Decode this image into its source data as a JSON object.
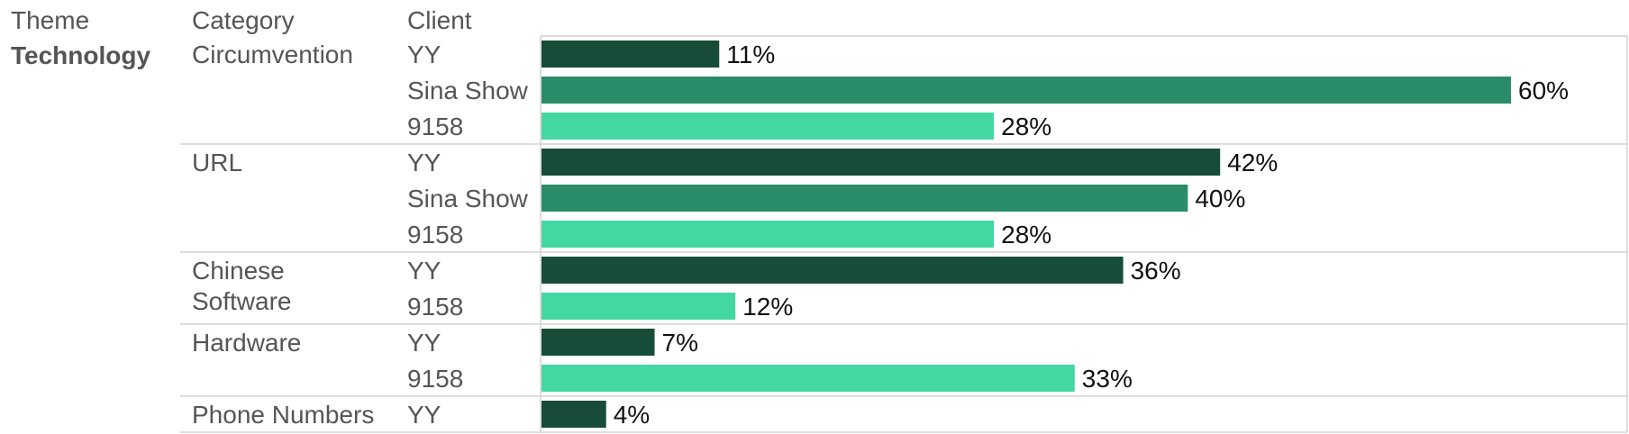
{
  "chart_data": {
    "type": "bar",
    "orientation": "horizontal",
    "headers": {
      "theme": "Theme",
      "category": "Category",
      "client": "Client"
    },
    "theme": "Technology",
    "value_format": "percent",
    "xlim": [
      0,
      60
    ],
    "client_colors": {
      "YY": "#174d38",
      "Sina Show": "#2a8c69",
      "9158": "#43d7a1"
    },
    "groups": [
      {
        "category": "Circumvention",
        "bars": [
          {
            "client": "YY",
            "value": 11,
            "label": "11%"
          },
          {
            "client": "Sina Show",
            "value": 60,
            "label": "60%"
          },
          {
            "client": "9158",
            "value": 28,
            "label": "28%"
          }
        ]
      },
      {
        "category": "URL",
        "bars": [
          {
            "client": "YY",
            "value": 42,
            "label": "42%"
          },
          {
            "client": "Sina Show",
            "value": 40,
            "label": "40%"
          },
          {
            "client": "9158",
            "value": 28,
            "label": "28%"
          }
        ]
      },
      {
        "category": "Chinese Software",
        "category_lines": [
          "Chinese",
          "Software"
        ],
        "bars": [
          {
            "client": "YY",
            "value": 36,
            "label": "36%"
          },
          {
            "client": "9158",
            "value": 12,
            "label": "12%"
          }
        ]
      },
      {
        "category": "Hardware",
        "bars": [
          {
            "client": "YY",
            "value": 7,
            "label": "7%"
          },
          {
            "client": "9158",
            "value": 33,
            "label": "33%"
          }
        ]
      },
      {
        "category": "Phone Numbers",
        "bars": [
          {
            "client": "YY",
            "value": 4,
            "label": "4%"
          }
        ]
      }
    ]
  }
}
